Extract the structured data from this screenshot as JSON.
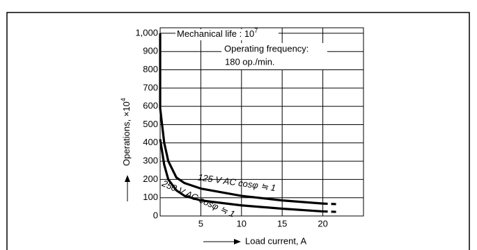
{
  "chart_data": {
    "type": "line",
    "y_axis_label": {
      "text": "Operations, ×10",
      "sup": "4"
    },
    "x_axis_label": "Load current, A",
    "annotations": {
      "mechanical_life": {
        "text": "Mechanical life : 10",
        "sup": "7"
      },
      "frequency": [
        "Operating frequency:",
        "180 op./min."
      ]
    },
    "xlim": [
      0,
      25
    ],
    "ylim": [
      0,
      1030
    ],
    "xticks": [
      5,
      10,
      15,
      20
    ],
    "yticks": [
      0,
      100,
      200,
      300,
      400,
      500,
      600,
      700,
      800,
      900,
      {
        "value": 1000,
        "label": "1,000"
      }
    ],
    "grid": true,
    "dashed_after": 20,
    "series": [
      {
        "name": "125 V AC cosφ ≒ 1",
        "color": "#000000",
        "x": [
          0,
          0,
          0.5,
          1,
          2,
          3,
          5,
          10,
          15,
          20,
          22
        ],
        "values": [
          1000,
          590,
          400,
          300,
          210,
          180,
          150,
          110,
          85,
          68,
          64
        ]
      },
      {
        "name": "250 V AC cosφ ≒ 1",
        "color": "#000000",
        "x": [
          0,
          0.5,
          1,
          2,
          3,
          5,
          10,
          15,
          20,
          22
        ],
        "values": [
          420,
          280,
          200,
          140,
          110,
          85,
          58,
          40,
          25,
          22
        ]
      }
    ]
  }
}
